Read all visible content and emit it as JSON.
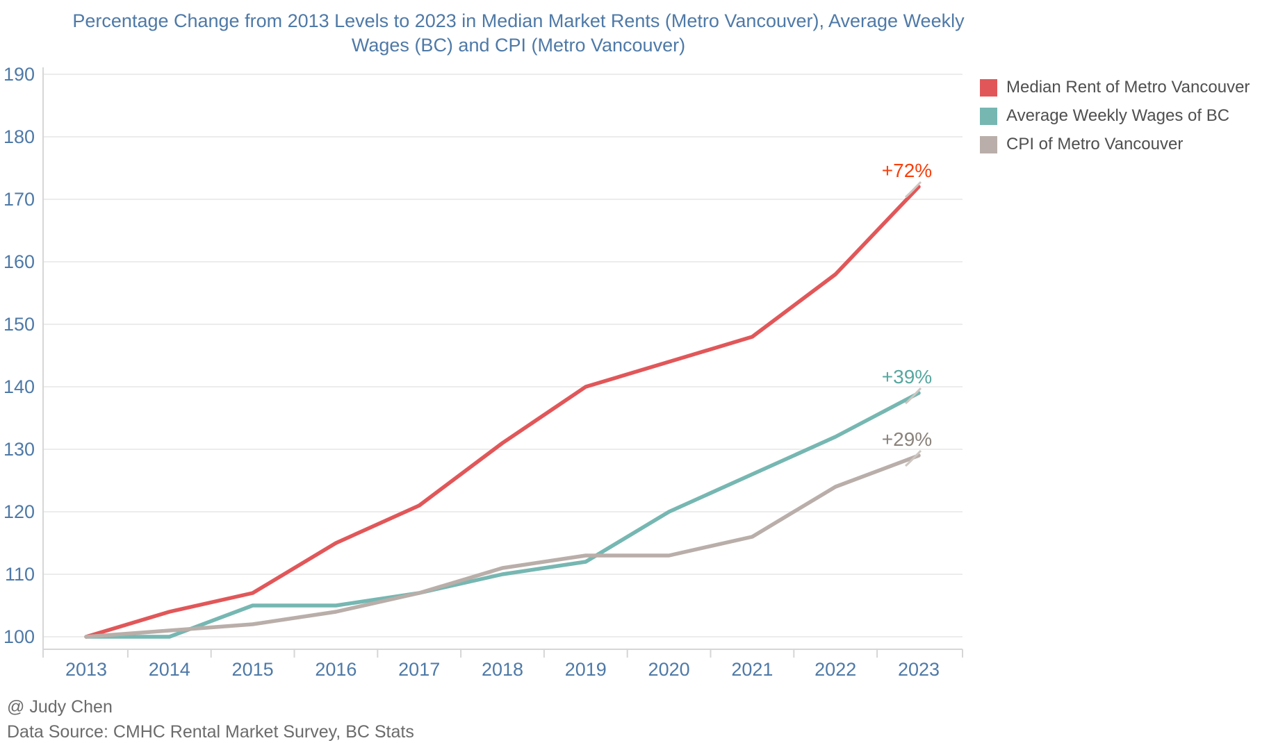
{
  "title": {
    "line1": "Percentage Change from 2013 Levels to 2023 in Median Market Rents (Metro Vancouver), Average Weekly",
    "line2": "Wages (BC) and CPI (Metro Vancouver)"
  },
  "legend": {
    "items": [
      {
        "label": "Median Rent of Metro Vancouver",
        "color": "#E15759"
      },
      {
        "label": "Average Weekly Wages of BC",
        "color": "#76B7B2"
      },
      {
        "label": "CPI of Metro Vancouver",
        "color": "#B9AEA9"
      }
    ]
  },
  "chart_data": {
    "type": "line",
    "title": "Percentage Change from 2013 Levels to 2023 in Median Market Rents (Metro Vancouver), Average Weekly Wages (BC) and CPI (Metro Vancouver)",
    "x": [
      2013,
      2014,
      2015,
      2016,
      2017,
      2018,
      2019,
      2020,
      2021,
      2022,
      2023
    ],
    "series": [
      {
        "name": "Median Rent of Metro Vancouver",
        "color": "#E15759",
        "values": [
          100,
          104,
          107,
          115,
          121,
          131,
          140,
          144,
          148,
          158,
          172
        ],
        "end_label": "+72%",
        "end_label_color": "#F8400C"
      },
      {
        "name": "Average Weekly Wages of BC",
        "color": "#76B7B2",
        "values": [
          100,
          100,
          105,
          105,
          107,
          110,
          112,
          120,
          126,
          132,
          139
        ],
        "end_label": "+39%",
        "end_label_color": "#56A79F"
      },
      {
        "name": "CPI of Metro Vancouver",
        "color": "#B9AEA9",
        "values": [
          100,
          101,
          102,
          104,
          107,
          111,
          113,
          113,
          116,
          124,
          129
        ],
        "end_label": "+29%",
        "end_label_color": "#8A827C"
      }
    ],
    "y_ticks": [
      100,
      110,
      120,
      130,
      140,
      150,
      160,
      170,
      180,
      190
    ],
    "ylim": [
      98,
      192
    ],
    "xlabel": "",
    "ylabel": "",
    "grid": "horizontal",
    "legend_position": "top-right",
    "axis_color": "#4E79A7",
    "gridline_color": "#ECECEC",
    "axis_line_color": "#D6D6D6"
  },
  "footer": {
    "author": "@ Judy Chen",
    "source": "Data Source: CMHC Rental Market Survey, BC Stats"
  }
}
